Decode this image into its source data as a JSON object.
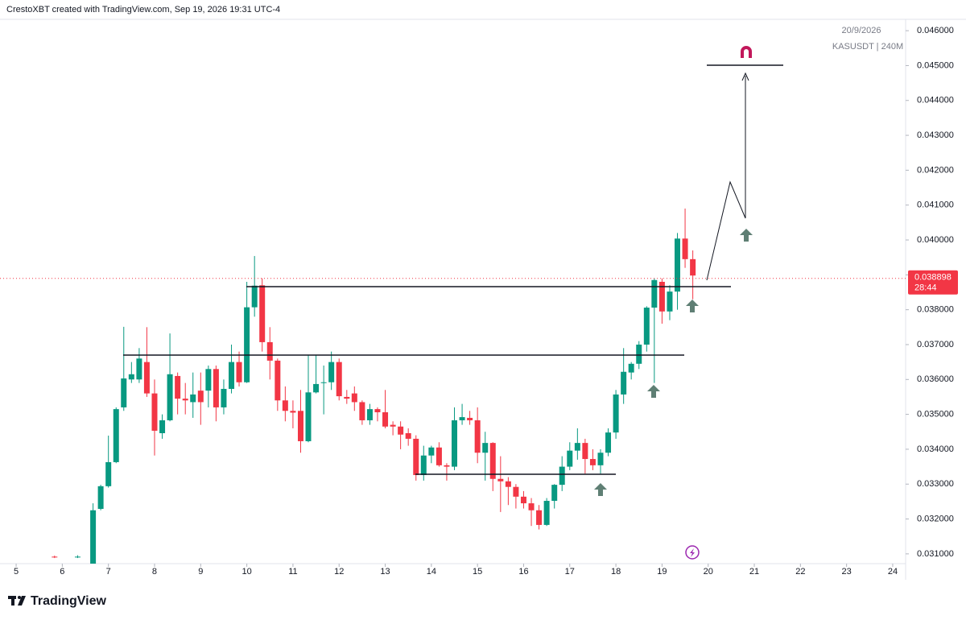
{
  "header": "CrestoXBT created with TradingView.com, Sep 19, 2026 19:31 UTC-4",
  "footer": {
    "brand": "TradingView"
  },
  "chart_data": {
    "type": "candlestick",
    "date": "20/9/2026",
    "symbol": "KASUSDT | 240M",
    "last_price": 0.038898,
    "countdown": "28:44",
    "up_color": "#089981",
    "down_color": "#f23645",
    "xlim": [
      4.65,
      24.28
    ],
    "ylim": [
      0.03072,
      0.04688
    ],
    "xticks": [
      5,
      6,
      7,
      8,
      9,
      10,
      11,
      12,
      13,
      14,
      15,
      16,
      17,
      18,
      19,
      20,
      21,
      22,
      23,
      24
    ],
    "yticks": [
      {
        "value": 0.031,
        "label": "0.031000"
      },
      {
        "value": 0.032,
        "label": "0.032000"
      },
      {
        "value": 0.033,
        "label": "0.033000"
      },
      {
        "value": 0.034,
        "label": "0.034000"
      },
      {
        "value": 0.035,
        "label": "0.035000"
      },
      {
        "value": 0.036,
        "label": "0.036000"
      },
      {
        "value": 0.037,
        "label": "0.037000"
      },
      {
        "value": 0.038,
        "label": "0.038000"
      },
      {
        "value": 0.039,
        "label": "0.039000"
      },
      {
        "value": 0.04,
        "label": "0.040000"
      },
      {
        "value": 0.041,
        "label": "0.041000"
      },
      {
        "value": 0.042,
        "label": "0.042000"
      },
      {
        "value": 0.043,
        "label": "0.043000"
      },
      {
        "value": 0.044,
        "label": "0.044000"
      },
      {
        "value": 0.045,
        "label": "0.045000"
      },
      {
        "value": 0.046,
        "label": "0.046000"
      }
    ],
    "x": [
      5.833,
      6.333,
      6.667,
      6.833,
      7,
      7.167,
      7.333,
      7.5,
      7.667,
      7.833,
      8,
      8.167,
      8.333,
      8.5,
      8.667,
      8.833,
      9,
      9.167,
      9.333,
      9.5,
      9.667,
      9.833,
      10,
      10.167,
      10.333,
      10.5,
      10.667,
      10.833,
      11,
      11.167,
      11.333,
      11.5,
      11.667,
      11.833,
      12,
      12.167,
      12.333,
      12.5,
      12.667,
      12.833,
      13,
      13.167,
      13.333,
      13.5,
      13.667,
      13.833,
      14,
      14.167,
      14.333,
      14.5,
      14.667,
      14.833,
      15,
      15.167,
      15.333,
      15.5,
      15.667,
      15.833,
      16,
      16.167,
      16.333,
      16.5,
      16.667,
      16.833,
      17,
      17.167,
      17.333,
      17.5,
      17.667,
      17.833,
      18,
      18.167,
      18.333,
      18.5,
      18.667,
      18.833,
      19,
      19.167,
      19.333,
      19.5,
      19.667
    ],
    "open": [
      0.03092,
      0.0309,
      0.03072,
      0.03229,
      0.03294,
      0.03363,
      0.0352,
      0.036,
      0.036,
      0.0365,
      0.0356,
      0.03446,
      0.03483,
      0.0361,
      0.03545,
      0.03535,
      0.03568,
      0.03568,
      0.0363,
      0.0352,
      0.03573,
      0.0365,
      0.03592,
      0.03807,
      0.0387,
      0.03707,
      0.03654,
      0.0354,
      0.0351,
      0.0351,
      0.03423,
      0.03563,
      0.0359,
      0.03592,
      0.0365,
      0.0355,
      0.0356,
      0.03535,
      0.03483,
      0.03515,
      0.03506,
      0.0347,
      0.03465,
      0.03446,
      0.0343,
      0.03326,
      0.03382,
      0.03405,
      0.03354,
      0.0335,
      0.03483,
      0.0349,
      0.03483,
      0.0339,
      0.03418,
      0.03315,
      0.03308,
      0.03292,
      0.03264,
      0.03245,
      0.03225,
      0.03183,
      0.03252,
      0.03298,
      0.0335,
      0.03396,
      0.03418,
      0.03372,
      0.03354,
      0.0339,
      0.03448,
      0.03557,
      0.0362,
      0.03645,
      0.037,
      0.03806,
      0.0388,
      0.03795,
      0.03852,
      0.04004,
      0.03945
    ],
    "high": [
      0.03095,
      0.03096,
      0.03245,
      0.03298,
      0.03439,
      0.0352,
      0.03751,
      0.0365,
      0.0369,
      0.0375,
      0.036,
      0.035,
      0.03732,
      0.0362,
      0.0359,
      0.0362,
      0.0362,
      0.0364,
      0.0364,
      0.036,
      0.037,
      0.0368,
      0.0388,
      0.03954,
      0.0389,
      0.0375,
      0.0366,
      0.0358,
      0.0354,
      0.0357,
      0.0367,
      0.0367,
      0.0364,
      0.0368,
      0.0366,
      0.0357,
      0.0358,
      0.0354,
      0.0353,
      0.0352,
      0.0357,
      0.0348,
      0.0348,
      0.0346,
      0.0344,
      0.0341,
      0.0341,
      0.0342,
      0.0336,
      0.0352,
      0.0353,
      0.0351,
      0.0352,
      0.0345,
      0.0342,
      0.0338,
      0.0332,
      0.033,
      0.0328,
      0.0326,
      0.0324,
      0.0326,
      0.033,
      0.0338,
      0.0342,
      0.0346,
      0.0343,
      0.034,
      0.034,
      0.0346,
      0.0357,
      0.0369,
      0.0365,
      0.0371,
      0.0381,
      0.0389,
      0.0389,
      0.0387,
      0.0402,
      0.0409,
      0.0397
    ],
    "low": [
      0.03088,
      0.03088,
      0.03065,
      0.03225,
      0.0329,
      0.0336,
      0.0351,
      0.0359,
      0.0359,
      0.0355,
      0.03382,
      0.0343,
      0.0348,
      0.035,
      0.035,
      0.0349,
      0.0347,
      0.0352,
      0.0348,
      0.035,
      0.0356,
      0.0358,
      0.0359,
      0.0378,
      0.0368,
      0.036,
      0.0351,
      0.0348,
      0.0346,
      0.0339,
      0.0342,
      0.0356,
      0.035,
      0.0357,
      0.0354,
      0.0353,
      0.0351,
      0.0347,
      0.0347,
      0.0348,
      0.0346,
      0.0344,
      0.034,
      0.0341,
      0.0331,
      0.0331,
      0.0336,
      0.0335,
      0.0331,
      0.0334,
      0.0347,
      0.0347,
      0.0336,
      0.0331,
      0.0328,
      0.0322,
      0.0324,
      0.0323,
      0.0323,
      0.0318,
      0.0317,
      0.0318,
      0.0323,
      0.0328,
      0.0334,
      0.0337,
      0.0333,
      0.0334,
      0.0333,
      0.0338,
      0.0343,
      0.0353,
      0.036,
      0.0363,
      0.0368,
      0.0359,
      0.0376,
      0.0377,
      0.038,
      0.0392,
      0.0383
    ],
    "close": [
      0.0309,
      0.03092,
      0.03225,
      0.03294,
      0.03363,
      0.03515,
      0.03603,
      0.03615,
      0.0366,
      0.0356,
      0.03453,
      0.03483,
      0.03615,
      0.03545,
      0.0354,
      0.03557,
      0.03535,
      0.0363,
      0.0352,
      0.03573,
      0.0365,
      0.03592,
      0.03807,
      0.03869,
      0.03707,
      0.03654,
      0.0354,
      0.0351,
      0.03505,
      0.03423,
      0.03563,
      0.03587,
      0.03592,
      0.0365,
      0.03552,
      0.03545,
      0.03535,
      0.03483,
      0.03515,
      0.03506,
      0.03465,
      0.03465,
      0.03442,
      0.0343,
      0.03326,
      0.03382,
      0.03405,
      0.03354,
      0.0335,
      0.03483,
      0.03492,
      0.03483,
      0.0339,
      0.03418,
      0.03315,
      0.03308,
      0.03292,
      0.03264,
      0.03245,
      0.03225,
      0.03183,
      0.03252,
      0.03298,
      0.0335,
      0.03396,
      0.03418,
      0.03372,
      0.03354,
      0.0339,
      0.03448,
      0.03557,
      0.03622,
      0.03645,
      0.037,
      0.03806,
      0.03885,
      0.03795,
      0.03852,
      0.04004,
      0.03945,
      0.03898
    ]
  }
}
